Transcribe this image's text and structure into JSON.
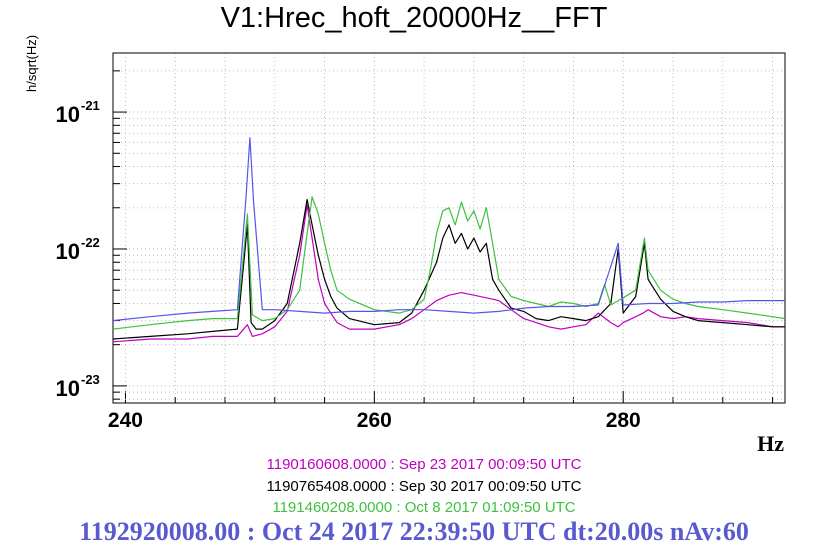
{
  "colors": {
    "magenta": "#c000c0",
    "black": "#000000",
    "green": "#40c040",
    "blue": "#5555ee",
    "footer": "#5a5ad0"
  },
  "chart_data": {
    "type": "line",
    "title": "V1:Hrec_hoft_20000Hz__FFT",
    "xlabel": "Hz",
    "ylabel": "h/sqrt(Hz)",
    "xlim": [
      239,
      293
    ],
    "ylim": [
      7.5e-24,
      2.7e-21
    ],
    "yscale": "log",
    "grid": true,
    "x_ticks": [
      "240",
      "260",
      "280"
    ],
    "y_ticks": [
      {
        "base": "10",
        "exp": "-21",
        "value": 1e-21
      },
      {
        "base": "10",
        "exp": "-22",
        "value": 1e-22
      },
      {
        "base": "10",
        "exp": "-23",
        "value": 1e-23
      }
    ],
    "series": [
      {
        "name": "1190160608.0000 : Sep 23 2017 00:09:50 UTC",
        "color": "#c000c0",
        "x": [
          239,
          242,
          245,
          247,
          249,
          249.8,
          250.2,
          251,
          252,
          253,
          254,
          254.6,
          255,
          255.5,
          256,
          256.5,
          257,
          258,
          260,
          262,
          263,
          264,
          265,
          266,
          267,
          268,
          269,
          269.5,
          270,
          271,
          272,
          273,
          274,
          275,
          276,
          277,
          278,
          279,
          279.6,
          280,
          281,
          281.6,
          282,
          283,
          284,
          285,
          286,
          288,
          290,
          292,
          293
        ],
        "y": [
          2.1e-23,
          2.2e-23,
          2.2e-23,
          2.3e-23,
          2.3e-23,
          2.8e-23,
          2.3e-23,
          2.4e-23,
          2.7e-23,
          3.5e-23,
          9e-23,
          2.1e-22,
          1.2e-22,
          6e-23,
          4e-23,
          3.4e-23,
          2.9e-23,
          2.6e-23,
          2.6e-23,
          2.8e-23,
          3.1e-23,
          3.6e-23,
          4.2e-23,
          4.6e-23,
          4.8e-23,
          4.6e-23,
          4.4e-23,
          4.3e-23,
          4.2e-23,
          3.6e-23,
          3.1e-23,
          2.9e-23,
          2.7e-23,
          2.6e-23,
          2.7e-23,
          2.8e-23,
          3.4e-23,
          2.9e-23,
          2.7e-23,
          2.9e-23,
          3.2e-23,
          3.4e-23,
          3.6e-23,
          3.2e-23,
          3.1e-23,
          3.2e-23,
          3.1e-23,
          3e-23,
          2.9e-23,
          2.7e-23,
          2.7e-23
        ]
      },
      {
        "name": "1190765408.0000 : Sep 30 2017 00:09:50 UTC",
        "color": "#000000",
        "x": [
          239,
          242,
          245,
          247,
          249,
          249.8,
          250.1,
          250.5,
          251,
          252,
          253,
          254,
          254.6,
          255,
          255.5,
          256,
          256.5,
          257,
          258,
          260,
          262,
          263,
          264,
          265,
          265.5,
          266,
          266.5,
          267,
          267.5,
          268,
          268.5,
          269,
          269.5,
          270,
          271,
          272,
          273,
          274,
          275,
          276,
          277,
          278,
          279,
          279.6,
          280,
          281,
          281.7,
          282,
          283,
          284,
          285,
          286,
          288,
          290,
          292,
          293
        ],
        "y": [
          2.2e-23,
          2.3e-23,
          2.4e-23,
          2.5e-23,
          2.6e-23,
          1.5e-22,
          2.9e-23,
          2.6e-23,
          2.6e-23,
          3e-23,
          4e-23,
          1.1e-22,
          2.3e-22,
          1.5e-22,
          9e-23,
          6e-23,
          4.5e-23,
          3.7e-23,
          3.1e-23,
          2.8e-23,
          2.9e-23,
          3.4e-23,
          5e-23,
          8e-23,
          1.2e-22,
          1.5e-22,
          1.1e-22,
          1.3e-22,
          1e-22,
          1.2e-22,
          9.5e-23,
          1.1e-22,
          6e-23,
          5e-23,
          3.7e-23,
          3.5e-23,
          3.1e-23,
          3e-23,
          3.2e-23,
          3.1e-23,
          3e-23,
          3.2e-23,
          4e-23,
          1e-22,
          3.4e-23,
          4.5e-23,
          1.1e-22,
          6e-23,
          4.3e-23,
          3.5e-23,
          3.2e-23,
          3e-23,
          2.9e-23,
          2.8e-23,
          2.7e-23,
          2.7e-23
        ]
      },
      {
        "name": "1191460208.0000 : Oct  8 2017 01:09:50 UTC",
        "color": "#40c040",
        "x": [
          239,
          242,
          245,
          247,
          249,
          249.8,
          250.2,
          251,
          252,
          253,
          254,
          254.6,
          255,
          255.5,
          256,
          256.5,
          257,
          258,
          260,
          262,
          263,
          264,
          264.5,
          265,
          265.5,
          266,
          266.5,
          267,
          267.5,
          268,
          268.5,
          269,
          269.5,
          270,
          271,
          272,
          273,
          274,
          275,
          276,
          277,
          278,
          278.5,
          279,
          279.6,
          280,
          281,
          281.7,
          282,
          283,
          284,
          285,
          286,
          288,
          290,
          292,
          293
        ],
        "y": [
          2.6e-23,
          2.8e-23,
          3e-23,
          3.1e-23,
          3.1e-23,
          1.8e-22,
          3.3e-23,
          3e-23,
          3.1e-23,
          3.6e-23,
          5e-23,
          1.3e-22,
          2.4e-22,
          1.8e-22,
          1.1e-22,
          7e-23,
          5e-23,
          4.3e-23,
          3.6e-23,
          3.4e-23,
          3.6e-23,
          4.3e-23,
          7e-23,
          1.3e-22,
          1.9e-22,
          2e-22,
          1.5e-22,
          2.2e-22,
          1.6e-22,
          1.9e-22,
          1.4e-22,
          2e-22,
          1.1e-22,
          6e-23,
          4.5e-23,
          4.2e-23,
          4e-23,
          3.8e-23,
          4.1e-23,
          4e-23,
          3.8e-23,
          4e-23,
          5.5e-23,
          3.9e-23,
          4.2e-23,
          4.4e-23,
          5e-23,
          1.2e-22,
          7e-23,
          5e-23,
          4.3e-23,
          4e-23,
          3.8e-23,
          3.6e-23,
          3.4e-23,
          3.2e-23,
          3.1e-23
        ]
      },
      {
        "name": "1192920008.00 : Oct 24 2017 22:39:50 UTC dt:20.00s nAv:60",
        "color": "#5555ee",
        "x": [
          239,
          242,
          245,
          247,
          249,
          249.7,
          250,
          250.3,
          251,
          252,
          254,
          256,
          258,
          260,
          262,
          264,
          266,
          268,
          270,
          272,
          274,
          276,
          278,
          279.6,
          280,
          282,
          284,
          286,
          288,
          290,
          292,
          293
        ],
        "y": [
          3e-23,
          3.2e-23,
          3.4e-23,
          3.5e-23,
          3.6e-23,
          2.5e-22,
          6.5e-22,
          2.2e-22,
          3.6e-23,
          3.6e-23,
          3.5e-23,
          3.4e-23,
          3.5e-23,
          3.5e-23,
          3.6e-23,
          3.6e-23,
          3.5e-23,
          3.4e-23,
          3.5e-23,
          3.7e-23,
          3.8e-23,
          3.8e-23,
          3.9e-23,
          1.1e-22,
          3.9e-23,
          4e-23,
          4e-23,
          4.1e-23,
          4.1e-23,
          4.2e-23,
          4.2e-23,
          4.2e-23
        ]
      }
    ]
  }
}
